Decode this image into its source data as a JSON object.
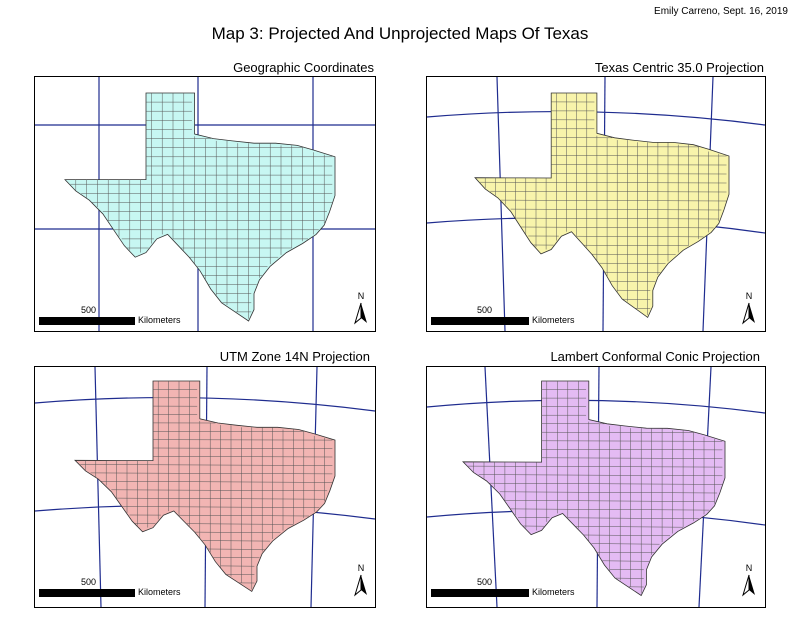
{
  "author": "Emily Carreno, Sept. 16, 2019",
  "title": "Map 3: Projected And Unprojected Maps Of Texas",
  "panels": [
    {
      "title": "Geographic Coordinates",
      "fill": "#c7f7f2"
    },
    {
      "title": "Texas Centric 35.0 Projection",
      "fill": "#f8f4ab"
    },
    {
      "title": "UTM Zone 14N Projection",
      "fill": "#f2b5b3"
    },
    {
      "title": "Lambert Conformal Conic Projection",
      "fill": "#e4bbf3"
    }
  ],
  "scale": {
    "value": "500",
    "unit": "Kilometers"
  },
  "north_label": "N",
  "colors": {
    "graticule": "#1f2c8f",
    "county_lines": "#555555",
    "outline": "#333333"
  }
}
